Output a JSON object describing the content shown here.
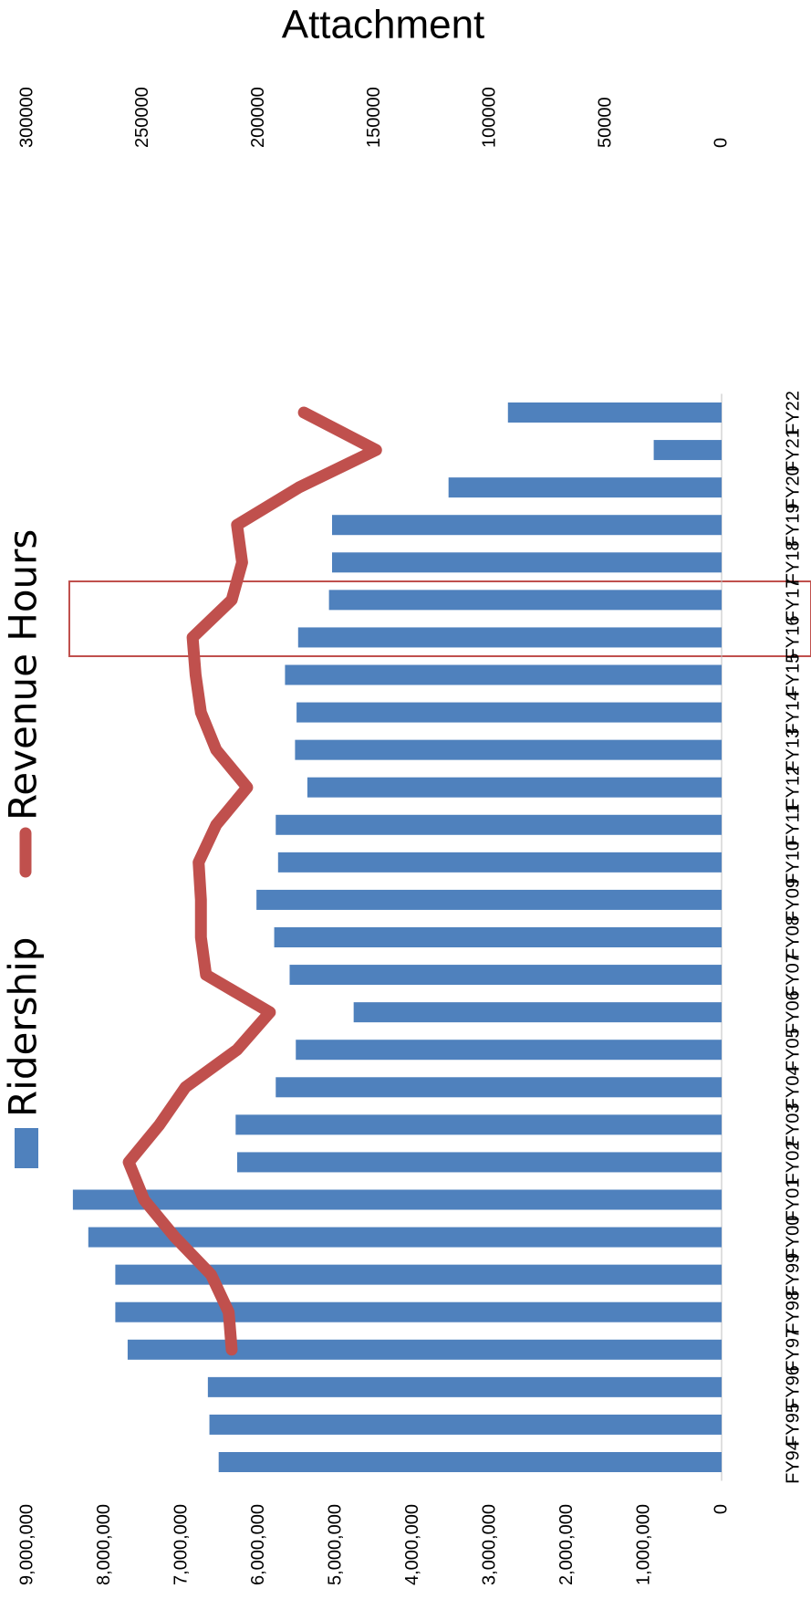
{
  "chart_data": {
    "type": "bar",
    "title": "Attachment",
    "categories": [
      "FY94",
      "FY95",
      "FY96",
      "FY97",
      "FY98",
      "FY99",
      "FY00",
      "FY01",
      "FY02",
      "FY03",
      "FY04",
      "FY05",
      "FY06",
      "FY07",
      "FY08",
      "FY09",
      "FY10",
      "FY11",
      "FY12",
      "FY13",
      "FY14",
      "FY15",
      "FY16",
      "FY17",
      "FY18",
      "FY19",
      "FY20",
      "FY21",
      "FY22"
    ],
    "series": [
      {
        "name": "Ridership",
        "color": "#4f81bd",
        "values": [
          6520000,
          6640000,
          6660000,
          7700000,
          7860000,
          7860000,
          8210000,
          8410000,
          6280000,
          6300000,
          5780000,
          5520000,
          4770000,
          5600000,
          5800000,
          6030000,
          5750000,
          5780000,
          5370000,
          5530000,
          5510000,
          5660000,
          5490000,
          5090000,
          5050000,
          5050000,
          3540000,
          880000,
          2770000
        ]
      },
      {
        "name": "Revenue Hours",
        "color": "#c0504d",
        "axis": "y2",
        "values": [
          null,
          null,
          null,
          211700,
          213000,
          220600,
          236200,
          249600,
          256200,
          242900,
          231700,
          209400,
          195200,
          222800,
          225000,
          225000,
          226000,
          218400,
          205000,
          218400,
          225000,
          227300,
          228600,
          211700,
          207200,
          209400,
          182700,
          149300,
          180500
        ]
      }
    ],
    "ylim": [
      0,
      9000000
    ],
    "yticks": [
      0,
      {
        "value": 1000000,
        "label": "1,000,000"
      },
      {
        "value": 2000000,
        "label": "2,000,000"
      },
      {
        "value": 3000000,
        "label": "3,000,000"
      },
      {
        "value": 4000000,
        "label": "4,000,000"
      },
      {
        "value": 5000000,
        "label": "5,000,000"
      },
      {
        "value": 6000000,
        "label": "6,000,000"
      },
      {
        "value": 7000000,
        "label": "7,000,000"
      },
      {
        "value": 8000000,
        "label": "8,000,000"
      },
      {
        "value": 9000000,
        "label": "9,000,000"
      }
    ],
    "y2lim": [
      0,
      300000
    ],
    "y2ticks": [
      0,
      50000,
      100000,
      150000,
      200000,
      250000,
      300000
    ]
  }
}
